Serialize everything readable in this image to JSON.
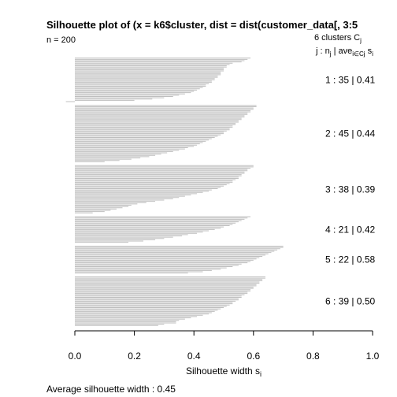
{
  "chart_data": {
    "type": "bar",
    "orientation": "horizontal",
    "title": "Silhouette plot of (x = k6$cluster, dist = dist(customer_data[, 3:5",
    "n_label": "n = 200",
    "header_line1": "6  clusters  C",
    "header_line1_sub": "j",
    "header_line2_pre": "j :  n",
    "header_line2_sub1": "j",
    "header_line2_mid": " | ave",
    "header_line2_sub2": "i∈Cj",
    "header_line2_post": "  s",
    "header_line2_sub3": "i",
    "xlabel": "Silhouette width s",
    "xlabel_sub": "i",
    "footer": "Average silhouette width :  0.45",
    "xlim": [
      0,
      1
    ],
    "x_ticks": [
      "0.0",
      "0.2",
      "0.4",
      "0.6",
      "0.8",
      "1.0"
    ],
    "bar_color": "#bebebe",
    "clusters": [
      {
        "label": "1 :  35  |  0.41",
        "values": [
          0.59,
          0.58,
          0.57,
          0.56,
          0.53,
          0.52,
          0.51,
          0.51,
          0.5,
          0.5,
          0.5,
          0.49,
          0.49,
          0.49,
          0.48,
          0.48,
          0.47,
          0.47,
          0.46,
          0.46,
          0.45,
          0.44,
          0.44,
          0.43,
          0.42,
          0.41,
          0.4,
          0.39,
          0.37,
          0.35,
          0.33,
          0.3,
          0.26,
          0.2,
          -0.03
        ]
      },
      {
        "label": "2 :  45  |  0.44",
        "values": [
          0.61,
          0.61,
          0.6,
          0.6,
          0.59,
          0.59,
          0.58,
          0.58,
          0.57,
          0.57,
          0.56,
          0.56,
          0.55,
          0.55,
          0.54,
          0.54,
          0.53,
          0.53,
          0.52,
          0.52,
          0.51,
          0.5,
          0.5,
          0.49,
          0.48,
          0.47,
          0.46,
          0.45,
          0.44,
          0.43,
          0.42,
          0.41,
          0.4,
          0.38,
          0.37,
          0.35,
          0.33,
          0.31,
          0.29,
          0.27,
          0.25,
          0.22,
          0.19,
          0.15,
          0.1
        ]
      },
      {
        "label": "3 :  38  |  0.39",
        "values": [
          0.6,
          0.6,
          0.59,
          0.58,
          0.58,
          0.57,
          0.57,
          0.56,
          0.56,
          0.55,
          0.55,
          0.54,
          0.53,
          0.53,
          0.52,
          0.51,
          0.5,
          0.49,
          0.48,
          0.46,
          0.45,
          0.43,
          0.41,
          0.39,
          0.37,
          0.35,
          0.33,
          0.3,
          0.27,
          0.24,
          0.21,
          0.19,
          0.18,
          0.16,
          0.14,
          0.12,
          0.1,
          0.06
        ]
      },
      {
        "label": "4 :  21  |  0.42",
        "values": [
          0.59,
          0.58,
          0.57,
          0.56,
          0.55,
          0.54,
          0.53,
          0.52,
          0.5,
          0.49,
          0.47,
          0.45,
          0.43,
          0.41,
          0.38,
          0.36,
          0.33,
          0.3,
          0.27,
          0.23,
          0.18
        ]
      },
      {
        "label": "5 :  22  |  0.58",
        "values": [
          0.7,
          0.7,
          0.69,
          0.68,
          0.67,
          0.66,
          0.65,
          0.64,
          0.63,
          0.62,
          0.61,
          0.6,
          0.59,
          0.58,
          0.56,
          0.55,
          0.53,
          0.51,
          0.49,
          0.46,
          0.43,
          0.38
        ]
      },
      {
        "label": "6 :  39  |  0.50",
        "values": [
          0.64,
          0.64,
          0.63,
          0.63,
          0.62,
          0.62,
          0.61,
          0.61,
          0.6,
          0.6,
          0.59,
          0.59,
          0.58,
          0.58,
          0.57,
          0.56,
          0.56,
          0.55,
          0.55,
          0.54,
          0.53,
          0.53,
          0.52,
          0.51,
          0.5,
          0.49,
          0.48,
          0.47,
          0.46,
          0.45,
          0.43,
          0.41,
          0.39,
          0.37,
          0.35,
          0.34,
          0.34,
          0.3,
          0.28
        ]
      }
    ]
  }
}
